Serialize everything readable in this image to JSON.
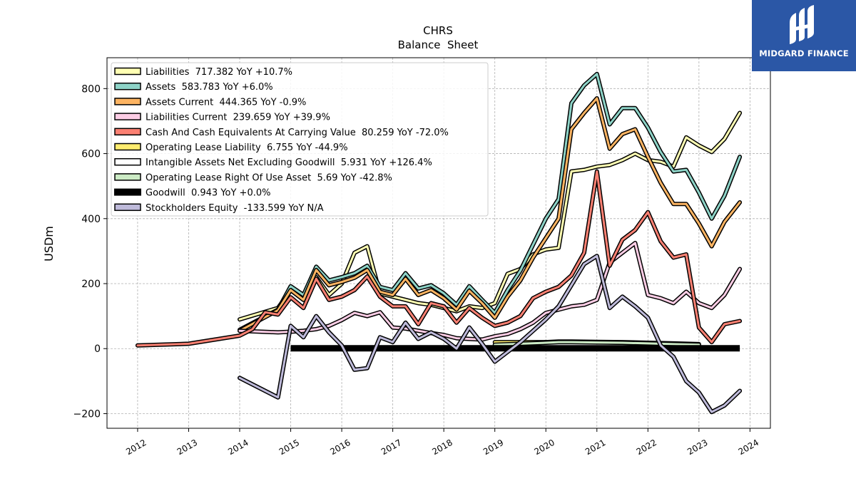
{
  "logo": {
    "text": "MIDGARD FINANCE",
    "background": "#2b57a6"
  },
  "chart_data": {
    "type": "line",
    "title": "CHRS",
    "subtitle": "Balance  Sheet",
    "xlabel": "",
    "ylabel": "USDm",
    "xlim": [
      2011.4,
      2024.4
    ],
    "ylim": [
      -245,
      895
    ],
    "grid": true,
    "legend_position": "top-left",
    "x_ticks": [
      "2012",
      "2013",
      "2014",
      "2015",
      "2016",
      "2017",
      "2018",
      "2019",
      "2020",
      "2021",
      "2022",
      "2023",
      "2024"
    ],
    "y_ticks": [
      -200,
      0,
      200,
      400,
      600,
      800
    ],
    "series": [
      {
        "name": "Liabilities",
        "legend": "Liabilities  717.382 YoY +10.7%",
        "color": "#ffffb3",
        "x": [
          2014.0,
          2014.75,
          2015.0,
          2015.25,
          2015.5,
          2015.75,
          2016.0,
          2016.25,
          2016.5,
          2016.75,
          2017.0,
          2017.25,
          2017.5,
          2017.75,
          2018.0,
          2018.25,
          2018.5,
          2018.75,
          2019.0,
          2019.25,
          2019.5,
          2019.75,
          2020.0,
          2020.25,
          2020.5,
          2020.75,
          2021.0,
          2021.25,
          2021.5,
          2021.75,
          2022.0,
          2022.25,
          2022.5,
          2022.75,
          2023.0,
          2023.25,
          2023.5,
          2023.8
        ],
        "y": [
          90,
          125,
          180,
          150,
          220,
          165,
          200,
          295,
          315,
          170,
          160,
          150,
          140,
          135,
          125,
          115,
          130,
          125,
          140,
          230,
          245,
          290,
          305,
          310,
          545,
          550,
          560,
          565,
          580,
          600,
          580,
          575,
          560,
          650,
          625,
          605,
          645,
          725
        ]
      },
      {
        "name": "Assets",
        "legend": "Assets  583.783 YoY +6.0%",
        "color": "#8dd3c7",
        "x": [
          2014.0,
          2014.75,
          2015.0,
          2015.25,
          2015.5,
          2015.75,
          2016.0,
          2016.25,
          2016.5,
          2016.75,
          2017.0,
          2017.25,
          2017.5,
          2017.75,
          2018.0,
          2018.25,
          2018.5,
          2018.75,
          2019.0,
          2019.25,
          2019.5,
          2019.75,
          2020.0,
          2020.25,
          2020.5,
          2020.75,
          2021.0,
          2021.25,
          2021.5,
          2021.75,
          2022.0,
          2022.25,
          2022.5,
          2022.75,
          2023.0,
          2023.25,
          2023.5,
          2023.8
        ],
        "y": [
          58,
          120,
          192,
          165,
          252,
          210,
          220,
          232,
          255,
          190,
          180,
          232,
          185,
          195,
          170,
          135,
          192,
          150,
          110,
          180,
          240,
          320,
          400,
          460,
          755,
          810,
          845,
          690,
          740,
          740,
          680,
          605,
          545,
          550,
          480,
          400,
          470,
          590
        ]
      },
      {
        "name": "Assets Current",
        "legend": "Assets Current  444.365 YoY -0.9%",
        "color": "#fdb462",
        "x": [
          2014.0,
          2014.75,
          2015.0,
          2015.25,
          2015.5,
          2015.75,
          2016.0,
          2016.25,
          2016.5,
          2016.75,
          2017.0,
          2017.25,
          2017.5,
          2017.75,
          2018.0,
          2018.25,
          2018.5,
          2018.75,
          2019.0,
          2019.25,
          2019.5,
          2019.75,
          2020.0,
          2020.25,
          2020.5,
          2020.75,
          2021.0,
          2021.25,
          2021.5,
          2021.75,
          2022.0,
          2022.25,
          2022.5,
          2022.75,
          2023.0,
          2023.25,
          2023.5,
          2023.8
        ],
        "y": [
          55,
          118,
          180,
          150,
          242,
          195,
          205,
          218,
          242,
          175,
          165,
          215,
          165,
          180,
          155,
          120,
          178,
          140,
          95,
          160,
          210,
          280,
          340,
          400,
          675,
          725,
          770,
          615,
          660,
          675,
          590,
          510,
          445,
          445,
          385,
          315,
          390,
          450
        ]
      },
      {
        "name": "Liabilities Current",
        "legend": "Liabilities Current  239.659 YoY +39.9%",
        "color": "#fccde5",
        "x": [
          2014.0,
          2014.75,
          2015.0,
          2015.25,
          2015.5,
          2015.75,
          2016.0,
          2016.25,
          2016.5,
          2016.75,
          2017.0,
          2017.25,
          2017.5,
          2017.75,
          2018.0,
          2018.25,
          2018.5,
          2018.75,
          2019.0,
          2019.25,
          2019.5,
          2019.75,
          2020.0,
          2020.25,
          2020.5,
          2020.75,
          2021.0,
          2021.25,
          2021.5,
          2021.75,
          2022.0,
          2022.25,
          2022.5,
          2022.75,
          2023.0,
          2023.25,
          2023.5,
          2023.8
        ],
        "y": [
          55,
          50,
          52,
          55,
          60,
          70,
          88,
          110,
          100,
          112,
          65,
          62,
          55,
          48,
          42,
          32,
          30,
          28,
          38,
          45,
          60,
          80,
          110,
          120,
          130,
          135,
          150,
          265,
          295,
          325,
          165,
          155,
          140,
          175,
          140,
          125,
          165,
          245
        ]
      },
      {
        "name": "Cash And Cash Equivalents At Carrying Value",
        "legend": "Cash And Cash Equivalents At Carrying Value  80.259 YoY -72.0%",
        "color": "#fb8072",
        "x": [
          2012.0,
          2013.0,
          2014.0,
          2014.25,
          2014.5,
          2014.75,
          2015.0,
          2015.25,
          2015.5,
          2015.75,
          2016.0,
          2016.25,
          2016.5,
          2016.75,
          2017.0,
          2017.25,
          2017.5,
          2017.75,
          2018.0,
          2018.25,
          2018.5,
          2018.75,
          2019.0,
          2019.25,
          2019.5,
          2019.75,
          2020.0,
          2020.25,
          2020.5,
          2020.75,
          2021.0,
          2021.25,
          2021.5,
          2021.75,
          2022.0,
          2022.25,
          2022.5,
          2022.75,
          2023.0,
          2023.25,
          2023.5,
          2023.8
        ],
        "y": [
          10,
          15,
          40,
          60,
          112,
          105,
          158,
          125,
          215,
          150,
          160,
          180,
          222,
          160,
          130,
          130,
          75,
          140,
          130,
          80,
          125,
          95,
          70,
          80,
          100,
          155,
          175,
          190,
          225,
          295,
          545,
          255,
          335,
          365,
          420,
          330,
          280,
          290,
          65,
          20,
          75,
          85
        ]
      },
      {
        "name": "Operating Lease Liability",
        "legend": "Operating Lease Liability  6.755 YoY -44.9%",
        "color": "#ffed6f",
        "x": [
          2019.0,
          2019.5,
          2020.0,
          2020.5,
          2021.0,
          2021.5,
          2022.0,
          2022.5,
          2023.0
        ],
        "y": [
          20,
          20,
          20,
          20,
          20,
          18,
          16,
          14,
          12
        ]
      },
      {
        "name": "Intangible Assets Net Excluding Goodwill",
        "legend": "Intangible Assets Net Excluding Goodwill  5.931 YoY +126.4%",
        "color": "#ffffff",
        "x": [
          2019.0,
          2019.5,
          2020.0,
          2020.25,
          2020.5,
          2021.0,
          2021.5,
          2022.0,
          2022.5,
          2023.0
        ],
        "y": [
          5,
          8,
          20,
          22,
          22,
          21,
          20,
          18,
          16,
          14
        ]
      },
      {
        "name": "Operating Lease Right Of Use Asset",
        "legend": "Operating Lease Right Of Use Asset  5.69 YoY -42.8%",
        "color": "#ccebc5",
        "x": [
          2019.0,
          2019.5,
          2020.0,
          2020.25,
          2020.5,
          2021.0,
          2021.5,
          2022.0,
          2022.5,
          2023.0
        ],
        "y": [
          12,
          15,
          18,
          20,
          20,
          19,
          18,
          16,
          14,
          12
        ]
      },
      {
        "name": "Goodwill",
        "legend": "Goodwill  0.943 YoY +0.0%",
        "color": "#000000",
        "x": [
          2015.0,
          2023.8
        ],
        "y": [
          1,
          1
        ]
      },
      {
        "name": "Stockholders Equity",
        "legend": "Stockholders Equity  -133.599 YoY N/A",
        "color": "#bebada",
        "x": [
          2014.0,
          2014.75,
          2015.0,
          2015.25,
          2015.5,
          2015.75,
          2016.0,
          2016.25,
          2016.5,
          2016.75,
          2017.0,
          2017.25,
          2017.5,
          2017.75,
          2018.0,
          2018.25,
          2018.5,
          2018.75,
          2019.0,
          2019.25,
          2019.5,
          2019.75,
          2020.0,
          2020.25,
          2020.5,
          2020.75,
          2021.0,
          2021.25,
          2021.5,
          2021.75,
          2022.0,
          2022.25,
          2022.5,
          2022.75,
          2023.0,
          2023.25,
          2023.5,
          2023.8
        ],
        "y": [
          -90,
          -150,
          70,
          35,
          100,
          50,
          10,
          -65,
          -60,
          35,
          20,
          80,
          30,
          50,
          30,
          0,
          65,
          15,
          -40,
          -10,
          20,
          55,
          90,
          130,
          195,
          260,
          285,
          125,
          160,
          130,
          95,
          10,
          -25,
          -100,
          -135,
          -195,
          -175,
          -130
        ]
      }
    ]
  }
}
